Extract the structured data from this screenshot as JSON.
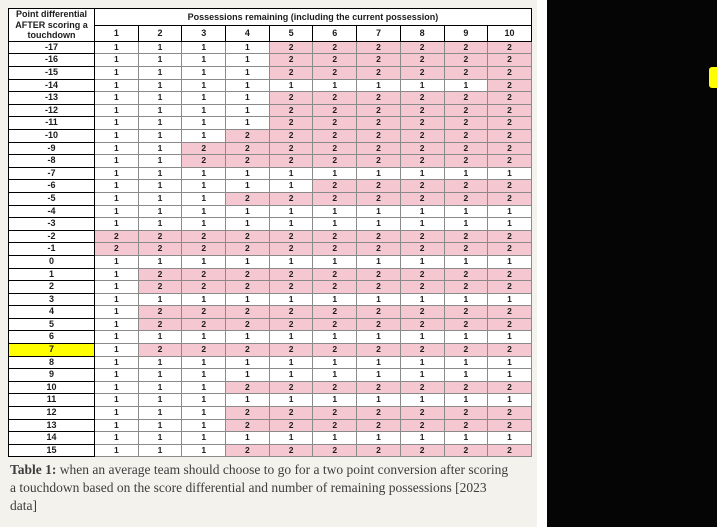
{
  "page": {
    "caption_bold": "Table 1:",
    "caption_rest": " when an average team should choose to go for a two point conversion after scoring a touchdown based on the score differential and number of remaining possessions [2023 data]"
  },
  "chart_data": {
    "type": "table",
    "corner_header": "Point differential AFTER scoring a touchdown",
    "group_header": "Possessions remaining (including the current possession)",
    "columns": [
      "1",
      "2",
      "3",
      "4",
      "5",
      "6",
      "7",
      "8",
      "9",
      "10"
    ],
    "highlighted_row_label": "7",
    "colors": {
      "pink": "#f5c8d1",
      "yellow": "#ffff00"
    },
    "rows": [
      {
        "label": "-17",
        "values": [
          1,
          1,
          1,
          1,
          2,
          2,
          2,
          2,
          2,
          2
        ]
      },
      {
        "label": "-16",
        "values": [
          1,
          1,
          1,
          1,
          2,
          2,
          2,
          2,
          2,
          2
        ]
      },
      {
        "label": "-15",
        "values": [
          1,
          1,
          1,
          1,
          2,
          2,
          2,
          2,
          2,
          2
        ]
      },
      {
        "label": "-14",
        "values": [
          1,
          1,
          1,
          1,
          1,
          1,
          1,
          1,
          1,
          2
        ]
      },
      {
        "label": "-13",
        "values": [
          1,
          1,
          1,
          1,
          2,
          2,
          2,
          2,
          2,
          2
        ]
      },
      {
        "label": "-12",
        "values": [
          1,
          1,
          1,
          1,
          2,
          2,
          2,
          2,
          2,
          2
        ]
      },
      {
        "label": "-11",
        "values": [
          1,
          1,
          1,
          1,
          2,
          2,
          2,
          2,
          2,
          2
        ]
      },
      {
        "label": "-10",
        "values": [
          1,
          1,
          1,
          2,
          2,
          2,
          2,
          2,
          2,
          2
        ]
      },
      {
        "label": "-9",
        "values": [
          1,
          1,
          2,
          2,
          2,
          2,
          2,
          2,
          2,
          2
        ]
      },
      {
        "label": "-8",
        "values": [
          1,
          1,
          2,
          2,
          2,
          2,
          2,
          2,
          2,
          2
        ]
      },
      {
        "label": "-7",
        "values": [
          1,
          1,
          1,
          1,
          1,
          1,
          1,
          1,
          1,
          1
        ]
      },
      {
        "label": "-6",
        "values": [
          1,
          1,
          1,
          1,
          1,
          2,
          2,
          2,
          2,
          2
        ]
      },
      {
        "label": "-5",
        "values": [
          1,
          1,
          1,
          2,
          2,
          2,
          2,
          2,
          2,
          2
        ]
      },
      {
        "label": "-4",
        "values": [
          1,
          1,
          1,
          1,
          1,
          1,
          1,
          1,
          1,
          1
        ]
      },
      {
        "label": "-3",
        "values": [
          1,
          1,
          1,
          1,
          1,
          1,
          1,
          1,
          1,
          1
        ]
      },
      {
        "label": "-2",
        "values": [
          2,
          2,
          2,
          2,
          2,
          2,
          2,
          2,
          2,
          2
        ]
      },
      {
        "label": "-1",
        "values": [
          2,
          2,
          2,
          2,
          2,
          2,
          2,
          2,
          2,
          2
        ]
      },
      {
        "label": "0",
        "values": [
          1,
          1,
          1,
          1,
          1,
          1,
          1,
          1,
          1,
          1
        ]
      },
      {
        "label": "1",
        "values": [
          1,
          2,
          2,
          2,
          2,
          2,
          2,
          2,
          2,
          2
        ]
      },
      {
        "label": "2",
        "values": [
          1,
          2,
          2,
          2,
          2,
          2,
          2,
          2,
          2,
          2
        ]
      },
      {
        "label": "3",
        "values": [
          1,
          1,
          1,
          1,
          1,
          1,
          1,
          1,
          1,
          1
        ]
      },
      {
        "label": "4",
        "values": [
          1,
          2,
          2,
          2,
          2,
          2,
          2,
          2,
          2,
          2
        ]
      },
      {
        "label": "5",
        "values": [
          1,
          2,
          2,
          2,
          2,
          2,
          2,
          2,
          2,
          2
        ]
      },
      {
        "label": "6",
        "values": [
          1,
          1,
          1,
          1,
          1,
          1,
          1,
          1,
          1,
          1
        ]
      },
      {
        "label": "7",
        "values": [
          1,
          2,
          2,
          2,
          2,
          2,
          2,
          2,
          2,
          2
        ]
      },
      {
        "label": "8",
        "values": [
          1,
          1,
          1,
          1,
          1,
          1,
          1,
          1,
          1,
          1
        ]
      },
      {
        "label": "9",
        "values": [
          1,
          1,
          1,
          1,
          1,
          1,
          1,
          1,
          1,
          1
        ]
      },
      {
        "label": "10",
        "values": [
          1,
          1,
          1,
          2,
          2,
          2,
          2,
          2,
          2,
          2
        ]
      },
      {
        "label": "11",
        "values": [
          1,
          1,
          1,
          1,
          1,
          1,
          1,
          1,
          1,
          1
        ]
      },
      {
        "label": "12",
        "values": [
          1,
          1,
          1,
          2,
          2,
          2,
          2,
          2,
          2,
          2
        ]
      },
      {
        "label": "13",
        "values": [
          1,
          1,
          1,
          2,
          2,
          2,
          2,
          2,
          2,
          2
        ]
      },
      {
        "label": "14",
        "values": [
          1,
          1,
          1,
          1,
          1,
          1,
          1,
          1,
          1,
          1
        ]
      },
      {
        "label": "15",
        "values": [
          1,
          1,
          1,
          2,
          2,
          2,
          2,
          2,
          2,
          2
        ]
      }
    ]
  }
}
